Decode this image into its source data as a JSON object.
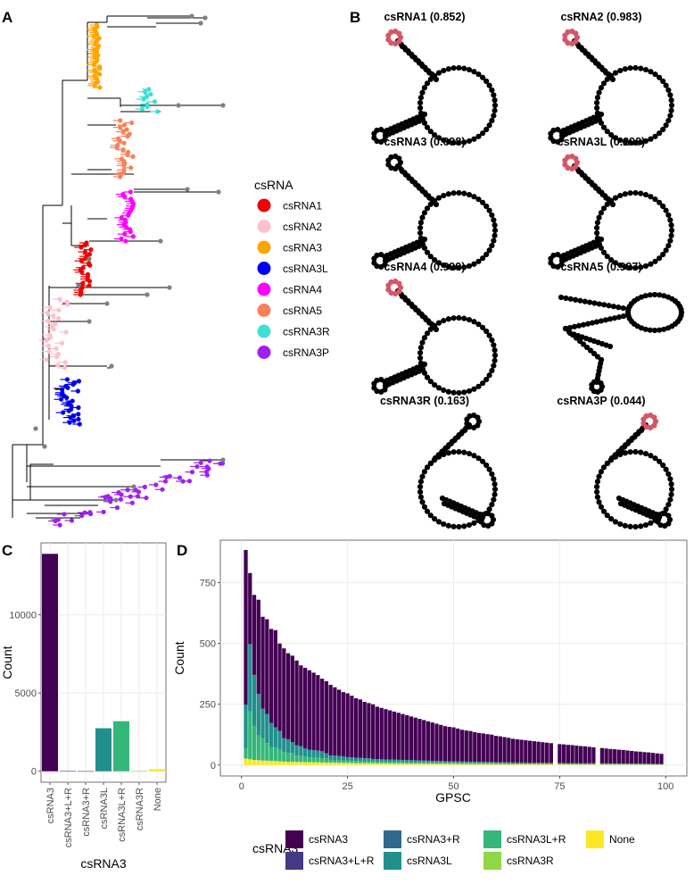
{
  "panels": {
    "a": "A",
    "b": "B",
    "c": "C",
    "d": "D"
  },
  "tree_legend": {
    "title": "csRNA",
    "items": [
      {
        "label": "csRNA1",
        "color": "#f00000"
      },
      {
        "label": "csRNA2",
        "color": "#ffc0cb"
      },
      {
        "label": "csRNA3",
        "color": "#ffa500"
      },
      {
        "label": "csRNA3L",
        "color": "#0000ee"
      },
      {
        "label": "csRNA4",
        "color": "#ff00ff"
      },
      {
        "label": "csRNA5",
        "color": "#f9805a"
      },
      {
        "label": "csRNA3R",
        "color": "#40e0d0"
      },
      {
        "label": "csRNA3P",
        "color": "#a020f0"
      }
    ]
  },
  "structures": [
    {
      "title": "csRNA1 (0.852)",
      "shape": "standard",
      "highlight": true
    },
    {
      "title": "csRNA2 (0.983)",
      "shape": "standard",
      "highlight": true
    },
    {
      "title": "csRNA3 (0.698)",
      "shape": "standard",
      "highlight": false
    },
    {
      "title": "csRNA3L (0.298)",
      "shape": "standard",
      "highlight": true
    },
    {
      "title": "csRNA4 (0.999)",
      "shape": "standard",
      "highlight": true
    },
    {
      "title": "csRNA5 (0.987)",
      "shape": "twisted",
      "highlight": false
    },
    {
      "title": "csRNA3R (0.163)",
      "shape": "mirrored",
      "highlight": false
    },
    {
      "title": "csRNA3P (0.044)",
      "shape": "mirrored",
      "highlight": true
    }
  ],
  "bottom_legend": {
    "title": "csRNA3",
    "items": [
      {
        "label": "csRNA3",
        "color": "#440154"
      },
      {
        "label": "csRNA3+L+R",
        "color": "#443a83"
      },
      {
        "label": "csRNA3+R",
        "color": "#31688e"
      },
      {
        "label": "csRNA3L",
        "color": "#21908d"
      },
      {
        "label": "csRNA3L+R",
        "color": "#35b779"
      },
      {
        "label": "csRNA3R",
        "color": "#8fd744"
      },
      {
        "label": "None",
        "color": "#fde725"
      }
    ]
  },
  "chart_data": [
    {
      "type": "bar",
      "panel": "C",
      "categories": [
        "csRNA3",
        "csRNA3+L+R",
        "csRNA3+R",
        "csRNA3L",
        "csRNA3L+R",
        "csRNA3R",
        "None"
      ],
      "values": [
        13900,
        15,
        10,
        2750,
        3200,
        10,
        130
      ],
      "colors": [
        "#440154",
        "#443a83",
        "#31688e",
        "#21908d",
        "#35b779",
        "#8fd744",
        "#fde725"
      ],
      "xlabel": "csRNA3",
      "ylabel": "Count",
      "yticks": [
        0,
        5000,
        10000
      ],
      "ylim": [
        -700,
        14600
      ],
      "grid": true
    },
    {
      "type": "bar",
      "stacked": true,
      "panel": "D",
      "xlabel": "GPSC",
      "ylabel": "Count",
      "xticks": [
        0,
        25,
        50,
        75,
        100
      ],
      "yticks": [
        0,
        250,
        500,
        750
      ],
      "xlim": [
        -5,
        105
      ],
      "ylim": [
        -45,
        925
      ],
      "grid": true,
      "totals": [
        885,
        790,
        700,
        680,
        610,
        600,
        560,
        555,
        500,
        480,
        460,
        450,
        430,
        410,
        400,
        390,
        380,
        370,
        355,
        345,
        330,
        320,
        310,
        300,
        295,
        285,
        275,
        270,
        260,
        255,
        250,
        240,
        235,
        230,
        225,
        220,
        215,
        210,
        205,
        200,
        195,
        190,
        185,
        180,
        175,
        170,
        165,
        160,
        157,
        155,
        150,
        145,
        142,
        140,
        135,
        132,
        130,
        127,
        125,
        120,
        118,
        115,
        112,
        108,
        106,
        104,
        102,
        100,
        98,
        96,
        94,
        92,
        90,
        88,
        86,
        85,
        83,
        82,
        80,
        78,
        77,
        75,
        73,
        72,
        70,
        68,
        66,
        65,
        63,
        62,
        60,
        58,
        56,
        55,
        53,
        52,
        50,
        48,
        46
      ],
      "csRNA3L_fraction": [
        0.2,
        0.35,
        0.3,
        0.25,
        0.2,
        0.2,
        0.18,
        0.15,
        0.15,
        0.12,
        0.12,
        0.1,
        0.1,
        0.1,
        0.08,
        0.08,
        0.08,
        0.08,
        0.08,
        0.06,
        0.06,
        0.06,
        0.06,
        0.06,
        0.05,
        0.05,
        0.05,
        0.05,
        0.05,
        0.05
      ],
      "csRNA3L+R_fraction": [
        0.05,
        0.25,
        0.2,
        0.15,
        0.15,
        0.12,
        0.1,
        0.1,
        0.1,
        0.08,
        0.08,
        0.08,
        0.06,
        0.06,
        0.06,
        0.05,
        0.05,
        0.05,
        0.05,
        0.05
      ],
      "None_fraction": 0.03
    }
  ]
}
